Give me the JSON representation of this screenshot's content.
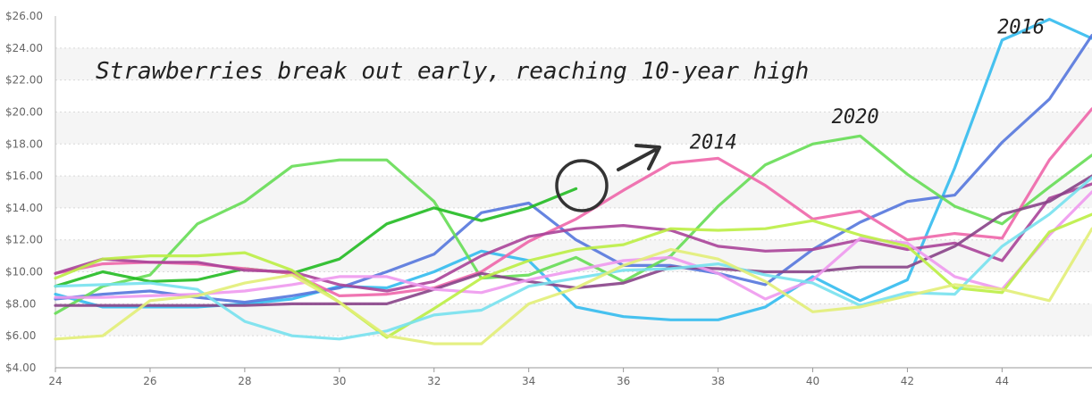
{
  "chart_data": {
    "type": "line",
    "title": "Strawberries break out early, reaching 10-year high",
    "xlabel": "",
    "ylabel": "",
    "xlim": [
      24,
      45.9
    ],
    "ylim": [
      4,
      26
    ],
    "x_ticks": [
      24,
      26,
      28,
      30,
      32,
      34,
      36,
      38,
      40,
      42,
      44
    ],
    "y_ticks": [
      "$4.00",
      "$6.00",
      "$8.00",
      "$10.00",
      "$12.00",
      "$14.00",
      "$16.00",
      "$18.00",
      "$20.00",
      "$22.00",
      "$24.00",
      "$26.00"
    ],
    "grid": true,
    "legend": "none",
    "annotations": [
      {
        "label": "2016",
        "x": 43.9,
        "y": 24.9
      },
      {
        "label": "2020",
        "x": 40.4,
        "y": 19.3
      },
      {
        "label": "2014",
        "x": 37.4,
        "y": 17.7
      }
    ],
    "series": [
      {
        "color": "#33bbee",
        "x": [
          24,
          25,
          26,
          27,
          28,
          29,
          30,
          31,
          32,
          33,
          34,
          35,
          36,
          37,
          38,
          39,
          40,
          41,
          42,
          43,
          44,
          45,
          45.9
        ],
        "values": [
          8.6,
          7.8,
          7.8,
          7.8,
          8.0,
          8.3,
          9.1,
          9.0,
          10.0,
          11.3,
          10.7,
          7.8,
          7.2,
          7.0,
          7.0,
          7.8,
          9.7,
          8.2,
          9.5,
          16.5,
          24.5,
          25.8,
          24.6
        ]
      },
      {
        "color": "#5577dd",
        "x": [
          24,
          25,
          26,
          27,
          28,
          29,
          30,
          31,
          32,
          33,
          34,
          35,
          36,
          37,
          38,
          39,
          40,
          41,
          42,
          43,
          44,
          45,
          45.9
        ],
        "values": [
          8.3,
          8.6,
          8.8,
          8.4,
          8.1,
          8.5,
          9.0,
          10.0,
          11.1,
          13.7,
          14.3,
          12.0,
          10.4,
          10.4,
          9.9,
          9.2,
          11.4,
          13.1,
          14.4,
          14.8,
          18.1,
          20.8,
          24.8
        ]
      },
      {
        "color": "#66dd55",
        "x": [
          24,
          25,
          26,
          27,
          28,
          29,
          30,
          31,
          32,
          33,
          34,
          35,
          36,
          37,
          38,
          39,
          40,
          41,
          42,
          43,
          44,
          45,
          45.9
        ],
        "values": [
          7.4,
          9.1,
          9.8,
          13.0,
          14.4,
          16.6,
          17.0,
          17.0,
          14.4,
          9.6,
          9.8,
          10.9,
          9.4,
          11.0,
          14.1,
          16.7,
          18.0,
          18.5,
          16.1,
          14.1,
          13.0,
          15.3,
          17.3
        ]
      },
      {
        "color": "#22bb22",
        "x": [
          24,
          25,
          26,
          27,
          28,
          29,
          30,
          31,
          32,
          33,
          34,
          35
        ],
        "values": [
          9.1,
          10.0,
          9.4,
          9.5,
          10.2,
          9.9,
          10.8,
          13.0,
          14.0,
          13.2,
          14.0,
          15.2
        ]
      },
      {
        "color": "#ee66aa",
        "x": [
          24,
          25,
          26,
          27,
          28,
          29,
          30,
          31,
          32,
          33,
          34,
          35,
          36,
          37,
          38,
          39,
          40,
          41,
          42,
          43,
          44,
          45,
          45.9
        ],
        "values": [
          9.9,
          10.5,
          10.6,
          10.5,
          10.2,
          9.9,
          8.5,
          8.6,
          9.0,
          10.0,
          11.9,
          13.3,
          15.1,
          16.8,
          17.1,
          15.4,
          13.3,
          13.8,
          12.0,
          12.4,
          12.1,
          17.0,
          20.2
        ]
      },
      {
        "color": "#aa4499",
        "x": [
          24,
          25,
          26,
          27,
          28,
          29,
          30,
          31,
          32,
          33,
          34,
          35,
          36,
          37,
          38,
          39,
          40,
          41,
          42,
          43,
          44,
          45,
          45.9
        ],
        "values": [
          9.9,
          10.8,
          10.6,
          10.6,
          10.1,
          10.0,
          9.2,
          8.8,
          9.4,
          11.0,
          12.2,
          12.7,
          12.9,
          12.6,
          11.6,
          11.3,
          11.4,
          12.0,
          11.4,
          11.8,
          10.7,
          14.6,
          15.5
        ]
      },
      {
        "color": "#884488",
        "x": [
          24,
          25,
          26,
          27,
          28,
          29,
          30,
          31,
          32,
          33,
          34,
          35,
          36,
          37,
          38,
          39,
          40,
          41,
          42,
          43,
          44,
          45,
          45.9
        ],
        "values": [
          7.9,
          7.9,
          7.9,
          7.9,
          7.9,
          8.0,
          8.0,
          8.0,
          8.9,
          9.9,
          9.4,
          9.0,
          9.3,
          10.3,
          10.2,
          10.0,
          10.0,
          10.3,
          10.3,
          11.6,
          13.6,
          14.4,
          16.0
        ]
      },
      {
        "color": "#ee99ee",
        "x": [
          24,
          25,
          26,
          27,
          28,
          29,
          30,
          31,
          32,
          33,
          34,
          35,
          36,
          37,
          38,
          39,
          40,
          41,
          42,
          43,
          44,
          45,
          45.9
        ],
        "values": [
          8.4,
          8.4,
          8.5,
          8.6,
          8.8,
          9.2,
          9.7,
          9.7,
          8.9,
          8.7,
          9.5,
          10.1,
          10.7,
          10.9,
          9.9,
          8.3,
          9.5,
          12.1,
          11.8,
          9.7,
          8.9,
          12.3,
          15.0
        ]
      },
      {
        "color": "#bbee44",
        "x": [
          24,
          25,
          26,
          27,
          28,
          29,
          30,
          31,
          32,
          33,
          34,
          35,
          36,
          37,
          38,
          39,
          40,
          41,
          42,
          43,
          44,
          45,
          45.9
        ],
        "values": [
          9.6,
          10.8,
          11.0,
          11.0,
          11.2,
          10.1,
          8.1,
          5.9,
          7.7,
          9.6,
          10.7,
          11.4,
          11.7,
          12.7,
          12.6,
          12.7,
          13.2,
          12.3,
          11.6,
          9.0,
          8.7,
          12.5,
          13.6
        ]
      },
      {
        "color": "#77e1ee",
        "x": [
          24,
          25,
          26,
          27,
          28,
          29,
          30,
          31,
          32,
          33,
          34,
          35,
          36,
          37,
          38,
          39,
          40,
          41,
          42,
          43,
          44,
          45,
          45.9
        ],
        "values": [
          9.1,
          9.2,
          9.3,
          8.9,
          6.9,
          6.0,
          5.8,
          6.3,
          7.3,
          7.6,
          9.1,
          9.6,
          10.1,
          10.2,
          10.5,
          9.8,
          9.3,
          7.9,
          8.7,
          8.6,
          11.6,
          13.6,
          15.9
        ]
      },
      {
        "color": "#e2ee77",
        "x": [
          24,
          25,
          26,
          27,
          28,
          29,
          30,
          31,
          32,
          33,
          34,
          35,
          36,
          37,
          38,
          39,
          40,
          41,
          42,
          43,
          44,
          45,
          45.9
        ],
        "values": [
          5.8,
          6.0,
          8.2,
          8.5,
          9.3,
          9.8,
          8.1,
          6.0,
          5.5,
          5.5,
          8.0,
          9.0,
          10.4,
          11.4,
          10.8,
          9.4,
          7.5,
          7.8,
          8.5,
          9.2,
          8.9,
          8.2,
          12.7
        ]
      }
    ]
  }
}
